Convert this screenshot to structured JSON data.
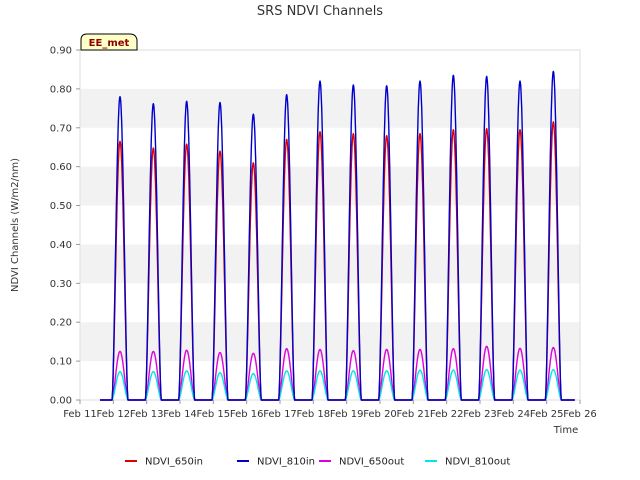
{
  "chart_data": {
    "type": "line",
    "title": "SRS NDVI Channels",
    "xlabel": "Time",
    "ylabel": "NDVI Channels (W/m2/nm)",
    "badge": "EE_met",
    "ylim": [
      0.0,
      0.9
    ],
    "yticks": [
      "0.00",
      "0.10",
      "0.20",
      "0.30",
      "0.40",
      "0.50",
      "0.60",
      "0.70",
      "0.80",
      "0.90"
    ],
    "xlim": [
      11,
      26
    ],
    "xticks": [
      "Feb 11",
      "Feb 12",
      "Feb 13",
      "Feb 14",
      "Feb 15",
      "Feb 16",
      "Feb 17",
      "Feb 18",
      "Feb 19",
      "Feb 20",
      "Feb 21",
      "Feb 22",
      "Feb 23",
      "Feb 24",
      "Feb 25",
      "Feb 26"
    ],
    "grid": "horizontal bands",
    "legend_position": "bottom",
    "day_centers": [
      12.2,
      13.2,
      14.2,
      15.2,
      16.2,
      17.2,
      18.2,
      19.2,
      20.2,
      21.2,
      22.2,
      23.2,
      24.2,
      25.2
    ],
    "series": [
      {
        "name": "NDVI_650in",
        "color": "#dd0000",
        "peaks": [
          0.665,
          0.648,
          0.658,
          0.64,
          0.61,
          0.67,
          0.69,
          0.685,
          0.68,
          0.685,
          0.695,
          0.698,
          0.695,
          0.715
        ]
      },
      {
        "name": "NDVI_810in",
        "color": "#0000cc",
        "peaks": [
          0.78,
          0.762,
          0.768,
          0.765,
          0.735,
          0.785,
          0.82,
          0.81,
          0.808,
          0.82,
          0.835,
          0.832,
          0.82,
          0.845
        ]
      },
      {
        "name": "NDVI_650out",
        "color": "#dd00dd",
        "peaks": [
          0.125,
          0.125,
          0.128,
          0.122,
          0.12,
          0.132,
          0.13,
          0.127,
          0.13,
          0.13,
          0.132,
          0.138,
          0.133,
          0.135
        ]
      },
      {
        "name": "NDVI_810out",
        "color": "#00e5e5",
        "peaks": [
          0.073,
          0.073,
          0.075,
          0.07,
          0.068,
          0.075,
          0.075,
          0.075,
          0.075,
          0.077,
          0.077,
          0.078,
          0.077,
          0.078
        ]
      }
    ]
  }
}
